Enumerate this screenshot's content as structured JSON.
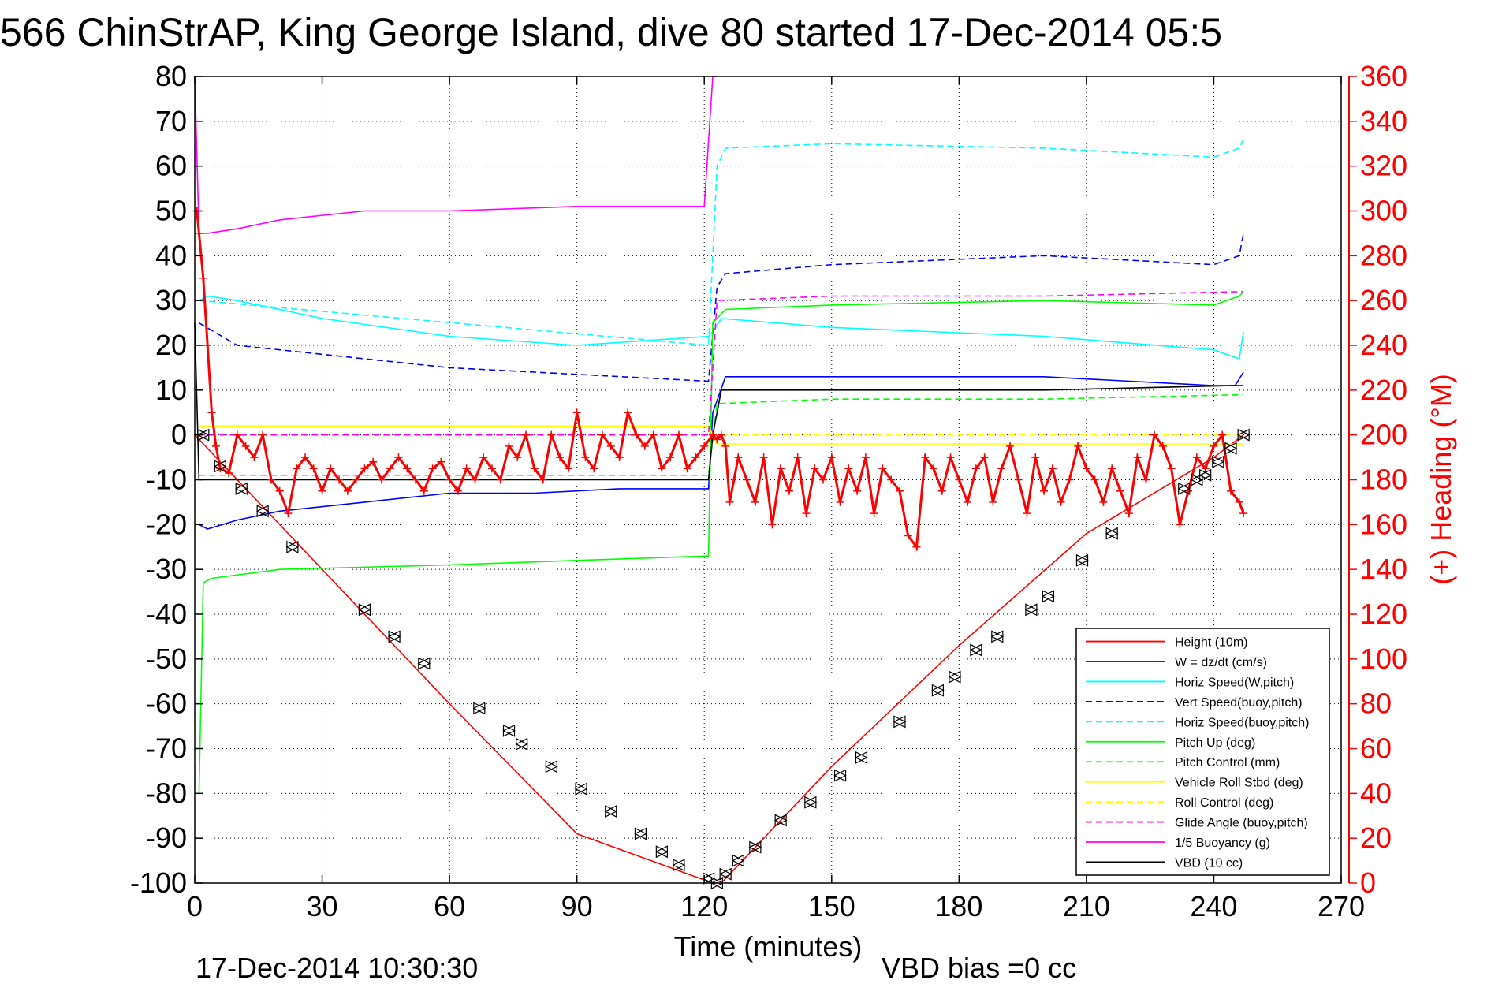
{
  "chart_data": {
    "type": "line",
    "title": "566 ChinStrAP, King George Island, dive 80 started 17-Dec-2014 05:5",
    "xlabel": "Time (minutes)",
    "ylabel_right": "(+) Heading (°M)",
    "xlim": [
      0,
      270
    ],
    "ylim": [
      -100,
      80
    ],
    "ylim_right": [
      0,
      360
    ],
    "x_ticks": [
      "0",
      "30",
      "60",
      "90",
      "120",
      "150",
      "180",
      "210",
      "240",
      "270"
    ],
    "y_ticks": [
      "80",
      "70",
      "60",
      "50",
      "40",
      "30",
      "20",
      "10",
      "0",
      "-10",
      "-20",
      "-30",
      "-40",
      "-50",
      "-60",
      "-70",
      "-80",
      "-90",
      "-100"
    ],
    "y_right_ticks": [
      "360",
      "340",
      "320",
      "300",
      "280",
      "260",
      "240",
      "220",
      "200",
      "180",
      "160",
      "140",
      "120",
      "100",
      "80",
      "60",
      "40",
      "20",
      "0"
    ],
    "grid": true,
    "legend_position": "bottom-right",
    "footer_left": "17-Dec-2014 10:30:30",
    "footer_right": "VBD bias =0 cc",
    "series": [
      {
        "name": "Height (10m)",
        "color": "#ff0000",
        "style": "solid",
        "x": [
          0,
          2,
          30,
          60,
          90,
          122,
          124,
          150,
          180,
          210,
          240,
          247
        ],
        "y": [
          0,
          -2,
          -30,
          -60,
          -89,
          -100,
          -100,
          -74,
          -47,
          -22,
          -5,
          0
        ]
      },
      {
        "name": "W = dz/dt (cm/s)",
        "color": "#0000ff",
        "style": "solid",
        "x": [
          1,
          3,
          10,
          20,
          40,
          60,
          80,
          100,
          121,
          122,
          125,
          150,
          200,
          240,
          245,
          247
        ],
        "y": [
          -20,
          -21,
          -19,
          -17,
          -15,
          -13,
          -13,
          -12,
          -12,
          5,
          13,
          13,
          13,
          11,
          11,
          14
        ]
      },
      {
        "name": "Horiz Speed(W,pitch)",
        "color": "#00ffff",
        "style": "solid",
        "x": [
          1,
          3,
          10,
          30,
          60,
          90,
          121,
          122,
          124,
          150,
          200,
          240,
          246,
          247
        ],
        "y": [
          30,
          31,
          30,
          26,
          22,
          20,
          22,
          23,
          26,
          24,
          22,
          19,
          17,
          23
        ]
      },
      {
        "name": "Vert Speed(buoy,pitch)",
        "color": "#0000ff",
        "style": "dashed",
        "x": [
          1,
          10,
          60,
          121,
          123,
          125,
          150,
          200,
          240,
          246,
          247
        ],
        "y": [
          25,
          20,
          15,
          12,
          33,
          36,
          38,
          40,
          38,
          40,
          45
        ]
      },
      {
        "name": "Horiz Speed(buoy,pitch)",
        "color": "#00ffff",
        "style": "dashed",
        "x": [
          1,
          121,
          123,
          125,
          150,
          200,
          240,
          246,
          247
        ],
        "y": [
          30,
          20,
          60,
          64,
          65,
          64,
          62,
          64,
          66
        ]
      },
      {
        "name": "Pitch Up (deg)",
        "color": "#00ff00",
        "style": "solid",
        "x": [
          1,
          2,
          4,
          20,
          60,
          90,
          121,
          122,
          125,
          150,
          200,
          240,
          246,
          247
        ],
        "y": [
          -80,
          -33,
          -32,
          -30,
          -29,
          -28,
          -27,
          25,
          28,
          29,
          30,
          29,
          31,
          32
        ]
      },
      {
        "name": "Pitch Control (mm)",
        "color": "#00ff00",
        "style": "dashed",
        "x": [
          1,
          121,
          123,
          150,
          200,
          247
        ],
        "y": [
          -9,
          -9,
          7,
          8,
          8,
          9
        ]
      },
      {
        "name": "Vehicle Roll Stbd (deg)",
        "color": "#ffff00",
        "style": "solid",
        "x": [
          1,
          121,
          123,
          150,
          200,
          247
        ],
        "y": [
          2,
          2,
          -2,
          -2,
          -2,
          -2
        ]
      },
      {
        "name": "Roll Control (deg)",
        "color": "#ffff00",
        "style": "dashed",
        "x": [
          1,
          121,
          123,
          247
        ],
        "y": [
          0,
          0,
          0,
          0
        ]
      },
      {
        "name": "Glide Angle (buoy,pitch)",
        "color": "#ff00ff",
        "style": "dashed",
        "x": [
          1,
          121,
          123,
          150,
          200,
          247
        ],
        "y": [
          0,
          0,
          30,
          31,
          31,
          32
        ]
      },
      {
        "name": "1/5 Buoyancy (g)",
        "color": "#ff00ff",
        "style": "solid",
        "x": [
          0,
          1,
          3,
          10,
          20,
          40,
          60,
          90,
          120,
          122,
          123
        ],
        "y": [
          80,
          45,
          45,
          46,
          48,
          50,
          50,
          51,
          51,
          80,
          80
        ]
      },
      {
        "name": "VBD (10 cc)",
        "color": "#000000",
        "style": "solid",
        "x": [
          0,
          1,
          2,
          121,
          122,
          124,
          150,
          200,
          244,
          247
        ],
        "y": [
          25,
          -10,
          -10,
          -10,
          0,
          10,
          10,
          10,
          11,
          11
        ]
      }
    ],
    "heading_series": {
      "color": "#ff0000",
      "marker": "+",
      "x": [
        0.5,
        1,
        2,
        3,
        4,
        5,
        6,
        8,
        10,
        12,
        14,
        16,
        18,
        20,
        22,
        24,
        26,
        28,
        30,
        32,
        34,
        36,
        38,
        40,
        42,
        44,
        46,
        48,
        50,
        52,
        54,
        56,
        58,
        60,
        62,
        64,
        66,
        68,
        70,
        72,
        74,
        76,
        78,
        80,
        82,
        84,
        86,
        88,
        90,
        92,
        94,
        96,
        98,
        100,
        102,
        104,
        106,
        108,
        110,
        112,
        114,
        116,
        118,
        120,
        122,
        123,
        124,
        125,
        126,
        128,
        130,
        132,
        134,
        136,
        138,
        140,
        142,
        144,
        146,
        148,
        150,
        152,
        154,
        156,
        158,
        160,
        162,
        164,
        166,
        168,
        170,
        172,
        174,
        176,
        178,
        180,
        182,
        184,
        186,
        188,
        190,
        192,
        194,
        196,
        198,
        200,
        202,
        204,
        206,
        208,
        210,
        212,
        214,
        216,
        218,
        220,
        222,
        224,
        226,
        228,
        230,
        232,
        234,
        236,
        238,
        240,
        242,
        244,
        246,
        247
      ],
      "y": [
        300,
        290,
        270,
        240,
        210,
        195,
        185,
        183,
        200,
        195,
        190,
        200,
        180,
        175,
        165,
        185,
        190,
        185,
        175,
        185,
        180,
        175,
        180,
        185,
        188,
        180,
        185,
        190,
        185,
        180,
        175,
        185,
        188,
        180,
        175,
        185,
        180,
        190,
        185,
        180,
        195,
        190,
        200,
        185,
        180,
        200,
        190,
        185,
        210,
        190,
        185,
        200,
        195,
        190,
        210,
        200,
        195,
        200,
        185,
        190,
        200,
        185,
        190,
        195,
        200,
        198,
        200,
        195,
        170,
        190,
        180,
        170,
        190,
        160,
        185,
        175,
        190,
        165,
        185,
        180,
        190,
        170,
        185,
        175,
        190,
        165,
        185,
        180,
        175,
        155,
        150,
        190,
        185,
        175,
        190,
        180,
        170,
        185,
        190,
        170,
        185,
        195,
        180,
        165,
        190,
        175,
        185,
        170,
        180,
        195,
        185,
        180,
        170,
        185,
        175,
        165,
        190,
        180,
        200,
        195,
        185,
        160,
        175,
        190,
        185,
        195,
        200,
        175,
        170,
        165
      ]
    },
    "markers": {
      "color": "#000000",
      "x": [
        2,
        6,
        11,
        16,
        23,
        40,
        47,
        54,
        67,
        74,
        77,
        84,
        91,
        98,
        105,
        110,
        114,
        121,
        123,
        125,
        128,
        132,
        138,
        145,
        152,
        157,
        166,
        175,
        179,
        184,
        189,
        197,
        201,
        209,
        216,
        233,
        236,
        238,
        241,
        244,
        247
      ],
      "y": [
        0,
        -7,
        -12,
        -17,
        -25,
        -39,
        -45,
        -51,
        -61,
        -66,
        -69,
        -74,
        -79,
        -84,
        -89,
        -93,
        -96,
        -99,
        -100,
        -98,
        -95,
        -92,
        -86,
        -82,
        -76,
        -72,
        -64,
        -57,
        -54,
        -48,
        -45,
        -39,
        -36,
        -28,
        -22,
        -12,
        -10,
        -9,
        -6,
        -3,
        0
      ]
    }
  }
}
